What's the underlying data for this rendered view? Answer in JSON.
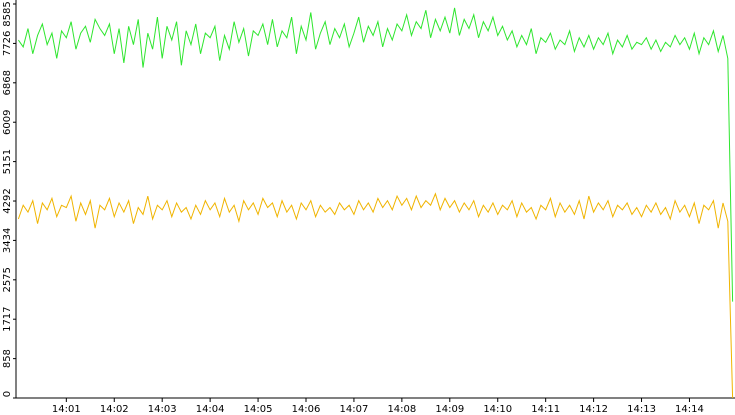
{
  "chart_data": {
    "type": "line",
    "categories": [
      null,
      null,
      null,
      null,
      null,
      null,
      null,
      null,
      null,
      null,
      "14:01",
      null,
      null,
      null,
      null,
      null,
      null,
      null,
      null,
      null,
      "14:02",
      null,
      null,
      null,
      null,
      null,
      null,
      null,
      null,
      null,
      "14:03",
      null,
      null,
      null,
      null,
      null,
      null,
      null,
      null,
      null,
      "14:04",
      null,
      null,
      null,
      null,
      null,
      null,
      null,
      null,
      null,
      "14:05",
      null,
      null,
      null,
      null,
      null,
      null,
      null,
      null,
      null,
      "14:06",
      null,
      null,
      null,
      null,
      null,
      null,
      null,
      null,
      null,
      "14:07",
      null,
      null,
      null,
      null,
      null,
      null,
      null,
      null,
      null,
      "14:08",
      null,
      null,
      null,
      null,
      null,
      null,
      null,
      null,
      null,
      "14:09",
      null,
      null,
      null,
      null,
      null,
      null,
      null,
      null,
      null,
      "14:10",
      null,
      null,
      null,
      null,
      null,
      null,
      null,
      null,
      null,
      "14:11",
      null,
      null,
      null,
      null,
      null,
      null,
      null,
      null,
      null,
      "14:12",
      null,
      null,
      null,
      null,
      null,
      null,
      null,
      null,
      null,
      "14:13",
      null,
      null,
      null,
      null,
      null,
      null,
      null,
      null,
      null,
      "14:14",
      null,
      null,
      null,
      null,
      null,
      null,
      null,
      null,
      null
    ],
    "series": [
      {
        "color": "#2ee62e",
        "values": [
          7800,
          7650,
          8050,
          7500,
          7900,
          8150,
          7700,
          7950,
          7400,
          8000,
          7850,
          8200,
          7600,
          7950,
          8100,
          7750,
          8250,
          8050,
          7900,
          8150,
          7500,
          8050,
          7300,
          8100,
          7700,
          8250,
          7200,
          7950,
          7600,
          8300,
          7400,
          8100,
          7800,
          8200,
          7250,
          8000,
          7700,
          8150,
          7500,
          7950,
          7850,
          8100,
          7350,
          7900,
          7600,
          8200,
          7750,
          8050,
          7450,
          8000,
          7900,
          8150,
          7700,
          8250,
          7650,
          8000,
          7850,
          8300,
          7500,
          8100,
          7800,
          8400,
          7600,
          7950,
          8200,
          7700,
          8050,
          7850,
          8150,
          7650,
          7950,
          8300,
          7750,
          8100,
          7900,
          8200,
          7650,
          8050,
          7800,
          8150,
          8000,
          8350,
          7900,
          8200,
          8050,
          8450,
          7850,
          8250,
          8000,
          8300,
          7950,
          8500,
          7900,
          8250,
          8050,
          8350,
          7850,
          8200,
          8000,
          8300,
          7900,
          8100,
          7800,
          8000,
          7650,
          7900,
          7700,
          8050,
          7500,
          7850,
          7750,
          7950,
          7600,
          7800,
          7700,
          8000,
          7550,
          7850,
          7650,
          7900,
          7600,
          7850,
          7700,
          7950,
          7500,
          7800,
          7650,
          7900,
          7600,
          7750,
          7700,
          7850,
          7600,
          7800,
          7550,
          7750,
          7650,
          7900,
          7700,
          7850,
          7600,
          7950,
          7500,
          7850,
          7700,
          8000,
          7550,
          7900,
          7400,
          2100
        ]
      },
      {
        "color": "#f0b400",
        "values": [
          3900,
          4200,
          4050,
          4300,
          3800,
          4250,
          4100,
          4350,
          3950,
          4200,
          4150,
          4400,
          3850,
          4250,
          4000,
          4300,
          3700,
          4200,
          4100,
          4350,
          3950,
          4250,
          4050,
          4300,
          3800,
          4150,
          4000,
          4400,
          3900,
          4200,
          4100,
          4300,
          3950,
          4250,
          4050,
          4150,
          3900,
          4200,
          4000,
          4300,
          4100,
          4250,
          3950,
          4350,
          4050,
          4200,
          3850,
          4300,
          4100,
          4250,
          4000,
          4350,
          4150,
          4250,
          3950,
          4300,
          4050,
          4200,
          3900,
          4250,
          4100,
          4300,
          3950,
          4200,
          4050,
          4150,
          4000,
          4250,
          4100,
          4200,
          4000,
          4300,
          4100,
          4250,
          4050,
          4350,
          4150,
          4300,
          4100,
          4400,
          4200,
          4350,
          4100,
          4400,
          4150,
          4300,
          4200,
          4450,
          4100,
          4350,
          4150,
          4300,
          4050,
          4250,
          4100,
          4300,
          3950,
          4200,
          4050,
          4250,
          4000,
          4200,
          4100,
          4300,
          3950,
          4250,
          4050,
          4150,
          3900,
          4200,
          4100,
          4350,
          3950,
          4250,
          4050,
          4200,
          4000,
          4300,
          3900,
          4400,
          4050,
          4250,
          4100,
          4300,
          3950,
          4200,
          4100,
          4250,
          4000,
          4150,
          3950,
          4200,
          4050,
          4250,
          4000,
          4150,
          3900,
          4300,
          4050,
          4200,
          3950,
          4250,
          3800,
          4200,
          4100,
          4300,
          3700,
          4250,
          3850,
          0
        ]
      }
    ],
    "ylim": [
      0,
      8585
    ],
    "yticks": [
      0,
      858,
      1717,
      2575,
      3434,
      4292,
      5151,
      6009,
      6868,
      7726,
      8585
    ]
  }
}
